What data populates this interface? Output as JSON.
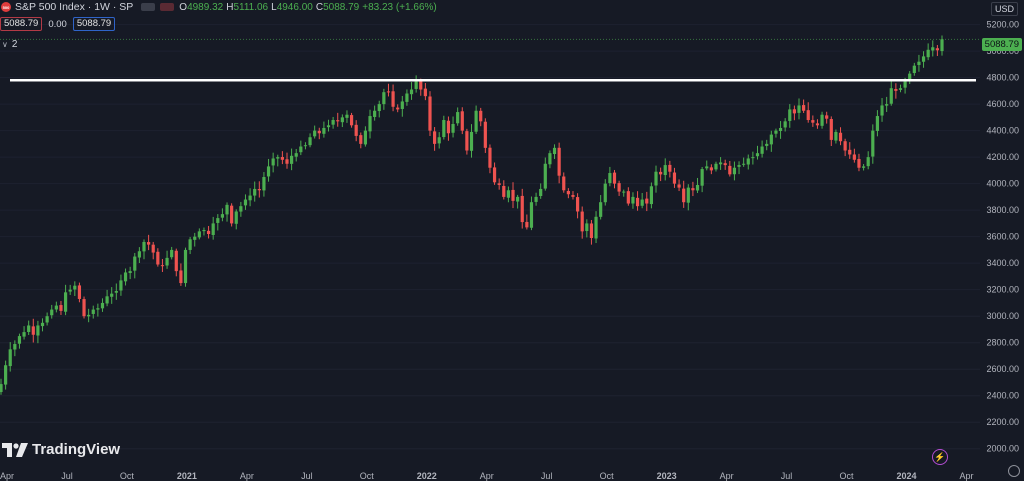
{
  "header": {
    "symbol_badge": "500",
    "title": "S&P 500 Index · 1W · SP",
    "ohlc": [
      {
        "k": "O",
        "v": "4989.32"
      },
      {
        "k": "H",
        "v": "5111.06"
      },
      {
        "k": "L",
        "v": "4946.00"
      },
      {
        "k": "C",
        "v": "5088.79"
      },
      {
        "k": "",
        "v": "+83.23 (+1.66%)"
      }
    ],
    "bid": "5088.79",
    "spread": "0.00",
    "ask": "5088.79",
    "indicator_count": "2",
    "currency": "USD"
  },
  "brand": {
    "name": "TradingView"
  },
  "colors": {
    "background": "#161a25",
    "up": "#4caf50",
    "down": "#ef5350",
    "resistance": "#ffffff",
    "axis_text": "#b2b5be"
  },
  "chart_data": {
    "type": "candlestick",
    "title": "S&P 500 Index · 1W · SP",
    "last_price": "5088.79",
    "ylim": [
      1900,
      5310
    ],
    "y_ticks": [
      "5200.00",
      "5000.00",
      "4800.00",
      "4600.00",
      "4400.00",
      "4200.00",
      "4000.00",
      "3800.00",
      "3600.00",
      "3400.00",
      "3200.00",
      "3000.00",
      "2800.00",
      "2600.00",
      "2400.00",
      "2200.00",
      "2000.00"
    ],
    "x_ticks": [
      "Apr",
      "Jul",
      "Oct",
      "2021",
      "Apr",
      "Jul",
      "Oct",
      "2022",
      "Apr",
      "Jul",
      "Oct",
      "2023",
      "Apr",
      "Jul",
      "Oct",
      "2024",
      "Apr"
    ],
    "x_tick_index": [
      0,
      13,
      26,
      39,
      52,
      65,
      78,
      91,
      104,
      117,
      130,
      143,
      156,
      169,
      182,
      195,
      208
    ],
    "horizontal_lines": [
      {
        "price": 4780,
        "color": "#ffffff"
      }
    ],
    "closes": [
      2488,
      2630,
      2750,
      2790,
      2850,
      2880,
      2930,
      2860,
      2930,
      2950,
      3000,
      3050,
      3080,
      3040,
      3180,
      3200,
      3230,
      3130,
      3000,
      3010,
      3050,
      3060,
      3100,
      3150,
      3170,
      3190,
      3270,
      3330,
      3340,
      3450,
      3490,
      3560,
      3540,
      3480,
      3390,
      3380,
      3440,
      3500,
      3340,
      3250,
      3500,
      3580,
      3600,
      3640,
      3650,
      3620,
      3700,
      3740,
      3770,
      3840,
      3700,
      3790,
      3830,
      3880,
      3910,
      3960,
      3950,
      4050,
      4130,
      4190,
      4200,
      4180,
      4150,
      4210,
      4230,
      4280,
      4290,
      4350,
      4400,
      4380,
      4420,
      4440,
      4480,
      4470,
      4500,
      4520,
      4440,
      4360,
      4300,
      4400,
      4510,
      4550,
      4600,
      4690,
      4690,
      4580,
      4560,
      4620,
      4680,
      4710,
      4770,
      4710,
      4660,
      4400,
      4300,
      4350,
      4480,
      4380,
      4450,
      4540,
      4400,
      4250,
      4390,
      4550,
      4470,
      4270,
      4120,
      4010,
      3990,
      3900,
      3950,
      3870,
      3900,
      3710,
      3670,
      3860,
      3900,
      3960,
      4150,
      4230,
      4270,
      4060,
      3950,
      3920,
      3900,
      3790,
      3640,
      3700,
      3590,
      3750,
      3860,
      4000,
      4080,
      4000,
      3940,
      3940,
      3850,
      3900,
      3830,
      3880,
      3850,
      3980,
      4090,
      4070,
      4140,
      4090,
      4000,
      3970,
      3860,
      3970,
      3950,
      3990,
      4110,
      4130,
      4100,
      4150,
      4160,
      4140,
      4070,
      4120,
      4140,
      4150,
      4190,
      4200,
      4230,
      4280,
      4300,
      4370,
      4400,
      4420,
      4470,
      4560,
      4530,
      4590,
      4550,
      4480,
      4460,
      4440,
      4520,
      4490,
      4330,
      4390,
      4320,
      4250,
      4220,
      4180,
      4120,
      4130,
      4200,
      4400,
      4510,
      4590,
      4600,
      4720,
      4700,
      4720,
      4770,
      4830,
      4890,
      4920,
      4960,
      5010,
      5029,
      5006,
      5089
    ]
  }
}
